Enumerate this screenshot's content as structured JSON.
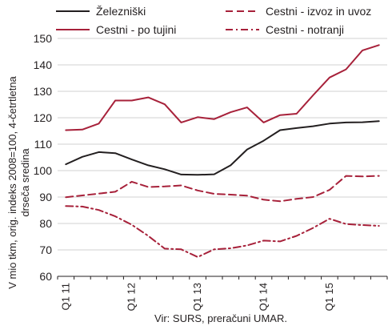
{
  "chart_data": {
    "type": "line",
    "source_note": "Vir: SURS, preračuni UMAR.",
    "ylabel_line1": "V mio tkm, orig. indeks 2008=100, 4-četrtletna",
    "ylabel_line2": "drseča sredina",
    "ylim": [
      60,
      150
    ],
    "yticks": [
      60,
      70,
      80,
      90,
      100,
      110,
      120,
      130,
      140,
      150
    ],
    "x_tick_labels": [
      {
        "label": "Q1 11",
        "index": 0
      },
      {
        "label": "Q1 12",
        "index": 4
      },
      {
        "label": "Q1 13",
        "index": 8
      },
      {
        "label": "Q1 14",
        "index": 12
      },
      {
        "label": "Q1 15",
        "index": 16
      }
    ],
    "x_count": 20,
    "grid": "horizontal",
    "legend_placement": "top",
    "series": [
      {
        "name": "Železniški",
        "color": "#231f20",
        "dash": "solid",
        "values": [
          102.4,
          105.2,
          107.0,
          106.6,
          104.2,
          102.0,
          100.5,
          98.5,
          98.4,
          98.6,
          102.0,
          108.0,
          111.3,
          115.3,
          116.1,
          116.8,
          117.8,
          118.2,
          118.3,
          118.7
        ]
      },
      {
        "name": "Cestni - izvoz in uvoz",
        "color": "#a7213a",
        "dash": "dash",
        "values": [
          89.9,
          90.6,
          91.3,
          92.0,
          95.8,
          93.8,
          94.0,
          94.4,
          92.5,
          91.2,
          90.9,
          90.5,
          89.0,
          88.4,
          89.3,
          90.0,
          92.7,
          98.0,
          97.8,
          98.0
        ]
      },
      {
        "name": "Cestni - po tujini",
        "color": "#a7213a",
        "dash": "solid",
        "values": [
          115.3,
          115.5,
          117.8,
          126.5,
          126.5,
          127.7,
          125.1,
          118.2,
          120.2,
          119.5,
          122.1,
          123.9,
          118.2,
          121.0,
          121.5,
          128.5,
          135.2,
          138.3,
          145.5,
          147.5
        ]
      },
      {
        "name": "Cestni - notranji",
        "color": "#a7213a",
        "dash": "dashdot",
        "values": [
          86.6,
          86.4,
          85.1,
          82.7,
          79.5,
          75.3,
          70.5,
          70.2,
          67.3,
          70.2,
          70.6,
          71.7,
          73.5,
          73.2,
          75.3,
          78.3,
          81.8,
          79.8,
          79.4,
          79.1
        ]
      }
    ]
  }
}
